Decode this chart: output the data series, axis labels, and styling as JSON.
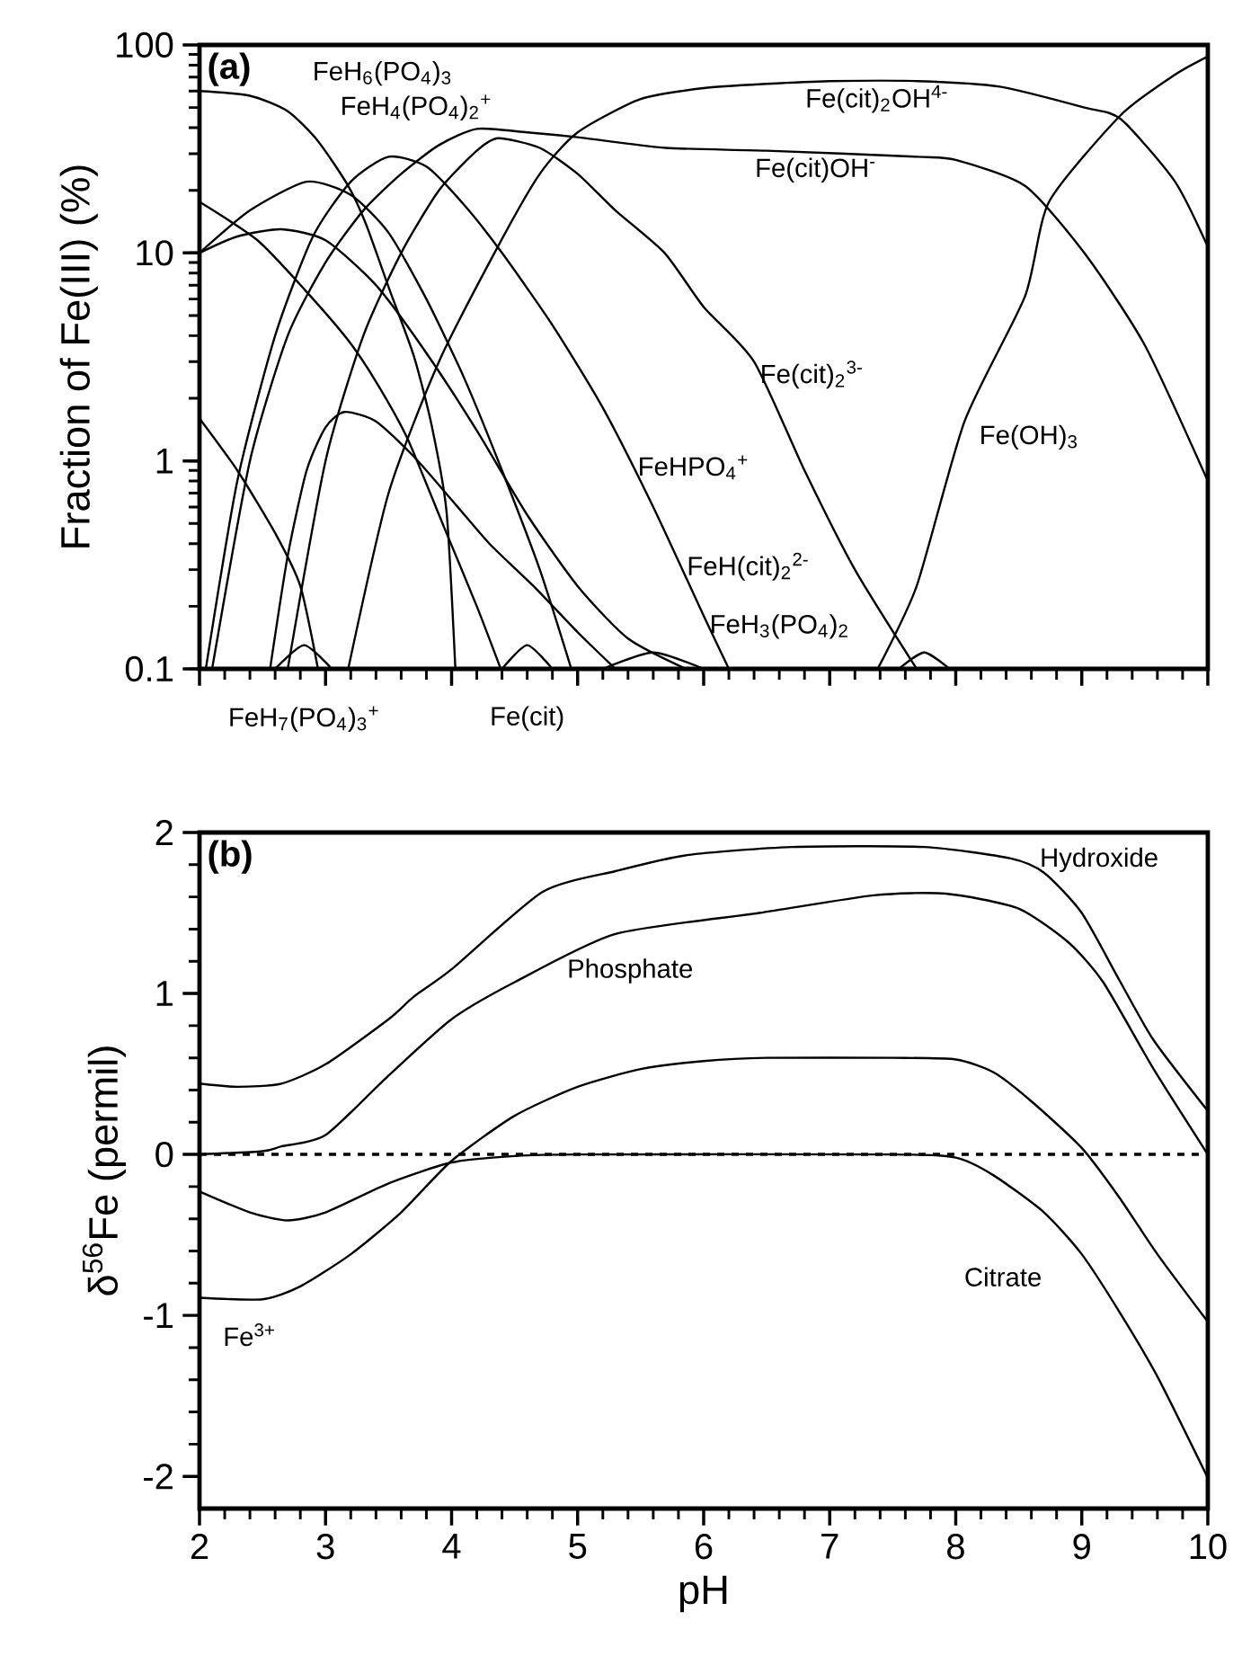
{
  "chart_data": [
    {
      "type": "line",
      "title": "(a)",
      "ylabel": "Fraction of Fe(III) (%)",
      "log": "y",
      "xlim": [
        2,
        10
      ],
      "xticks": [
        2,
        3,
        4,
        5,
        6,
        7,
        8,
        9,
        10
      ],
      "ylim": [
        0.1,
        100
      ],
      "yticks": [
        0.1,
        1,
        10,
        100
      ],
      "tick_labels": "y",
      "series": [
        {
          "color": "#000000",
          "x": [
            2,
            2.4,
            2.7,
            2.94,
            3.18,
            3.32,
            3.51,
            3.7,
            3.84,
            3.96,
            4.03
          ],
          "values": [
            60,
            57,
            48,
            34.5,
            21,
            13.8,
            6.6,
            3.2,
            1.5,
            0.57,
            0.1
          ]
        },
        {
          "color": "#000000",
          "x": [
            2,
            2.46,
            2.84,
            3.18,
            3.41,
            3.65,
            3.94,
            4.2,
            4.39
          ],
          "values": [
            17.6,
            11.5,
            6.6,
            3.8,
            2.35,
            1.28,
            0.48,
            0.2,
            0.1
          ]
        },
        {
          "color": "#000000",
          "x": [
            2,
            2.4,
            2.85,
            3.2,
            3.5,
            3.8,
            4.1,
            4.4,
            4.7,
            4.95
          ],
          "values": [
            10,
            16,
            22,
            19,
            12.5,
            6,
            2.5,
            0.9,
            0.3,
            0.1
          ]
        },
        {
          "color": "#000000",
          "x": [
            2,
            2.3,
            2.65,
            3.0,
            3.4,
            3.8,
            4.2,
            4.6,
            5.0,
            5.4,
            5.86
          ],
          "values": [
            10,
            12,
            13,
            11.5,
            7,
            3.3,
            1.4,
            0.55,
            0.25,
            0.14,
            0.1
          ]
        },
        {
          "color": "#000000",
          "x": [
            2,
            2.3,
            2.6,
            2.8,
            2.94
          ],
          "values": [
            1.6,
            0.9,
            0.45,
            0.25,
            0.1
          ]
        },
        {
          "color": "#000000",
          "x": [
            2.56,
            2.7,
            2.85,
            3.0,
            3.15,
            3.4,
            3.7,
            4.0,
            4.3,
            4.65,
            5.0,
            5.3
          ],
          "values": [
            0.1,
            0.35,
            0.9,
            1.45,
            1.72,
            1.55,
            1.05,
            0.65,
            0.4,
            0.25,
            0.15,
            0.1
          ]
        },
        {
          "color": "#000000",
          "x": [
            2.05,
            2.3,
            2.6,
            2.9,
            3.2,
            3.5,
            3.8,
            4.1,
            4.4,
            4.8,
            5.2,
            5.6,
            6.0,
            6.2
          ],
          "values": [
            0.1,
            0.8,
            4,
            12,
            22,
            29,
            26,
            17,
            10,
            4.5,
            1.8,
            0.6,
            0.18,
            0.1
          ]
        },
        {
          "color": "#000000",
          "x": [
            2.1,
            2.4,
            2.7,
            3.0,
            3.3,
            3.6,
            3.9,
            4.2,
            4.6,
            5.0,
            5.7,
            6.5,
            7.69,
            8.0,
            8.55,
            9.02,
            9.5,
            10
          ],
          "values": [
            0.1,
            1,
            4,
            9,
            16,
            24,
            33,
            39.5,
            38,
            36,
            32,
            31,
            29,
            28,
            21,
            10,
            3.6,
            0.8
          ]
        },
        {
          "color": "#000000",
          "x": [
            2.7,
            3.0,
            3.3,
            3.6,
            3.9,
            4.2,
            4.37,
            4.7,
            5.0,
            5.3,
            5.69,
            6.0,
            6.4,
            6.8,
            7.2,
            7.69
          ],
          "values": [
            0.1,
            1,
            4,
            10,
            20,
            31,
            35.6,
            32,
            24,
            16,
            10,
            5.5,
            3,
            0.9,
            0.3,
            0.1
          ]
        },
        {
          "color": "#000000",
          "x": [
            3.18,
            3.5,
            3.9,
            4.37,
            4.7,
            5.0,
            5.5,
            6.0,
            6.5,
            7.0,
            7.7,
            8.35,
            9.02,
            9.31,
            9.74,
            10
          ],
          "values": [
            0.1,
            0.7,
            3,
            10.8,
            24,
            38,
            55,
            62,
            65,
            67,
            67,
            63,
            50,
            44,
            22,
            10.7
          ]
        },
        {
          "color": "#000000",
          "x": [
            7.38,
            7.69,
            8.07,
            8.55,
            8.74,
            9.31,
            9.74,
            10
          ],
          "values": [
            0.1,
            0.25,
            1.55,
            6.2,
            17.6,
            46,
            72,
            88
          ]
        },
        {
          "color": "#000000",
          "x": [
            2.6,
            2.83,
            3.05
          ],
          "values": [
            0.1,
            0.13,
            0.1
          ]
        },
        {
          "color": "#000000",
          "x": [
            4.4,
            4.6,
            4.8
          ],
          "values": [
            0.1,
            0.13,
            0.1
          ]
        },
        {
          "color": "#000000",
          "x": [
            5.2,
            5.6,
            6.0
          ],
          "values": [
            0.1,
            0.12,
            0.1
          ]
        },
        {
          "color": "#000000",
          "x": [
            7.55,
            7.75,
            7.95
          ],
          "values": [
            0.1,
            0.12,
            0.1
          ]
        }
      ],
      "annotations": [
        "FeH$_{6}$(PO$_{4}$)$_{3}$",
        "FeH$_{4}$(PO$_{4}$)$_{2}$$^{+}$",
        "Fe(cit)$_{2}$OH$^{4-}$",
        "Fe(cit)OH$^{-}$",
        "Fe(cit)$_{2}$$^{3-}$",
        "Fe(OH)$_{3}$",
        "FeHPO$_{4}$$^{+}$",
        "FeH(cit)$_{2}$$^{2-}$",
        "FeH$_{3}$(PO$_{4}$)$_{2}$",
        "FeH$_{7}$(PO$_{4}$)$_{3}$$^{+}$",
        "Fe(cit)"
      ]
    },
    {
      "type": "line",
      "title": "(b)",
      "xlabel": "pH",
      "ylabel": "δ$^{56}$Fe (permil)",
      "xlim": [
        2,
        10
      ],
      "xticks": [
        2,
        3,
        4,
        5,
        6,
        7,
        8,
        9,
        10
      ],
      "ylim": [
        -2.2,
        2
      ],
      "yticks": [
        -2,
        -1,
        0,
        1,
        2
      ],
      "ref_lines": [
        {
          "axis": "y",
          "value": 0,
          "line_style": "dashed"
        }
      ],
      "series": [
        {
          "color": "#000000",
          "x": [
            2,
            2.3,
            2.65,
            3.0,
            3.5,
            3.7,
            4.0,
            4.72,
            5.3,
            5.87,
            6.7,
            7.75,
            8.43,
            8.7,
            9.0,
            9.3,
            9.57,
            10
          ],
          "values": [
            0.44,
            0.42,
            0.44,
            0.56,
            0.84,
            0.98,
            1.15,
            1.63,
            1.76,
            1.86,
            1.91,
            1.91,
            1.84,
            1.75,
            1.5,
            1.08,
            0.71,
            0.27
          ]
        },
        {
          "color": "#000000",
          "x": [
            2,
            2.5,
            2.65,
            3.0,
            3.5,
            4.0,
            4.5,
            5.3,
            6.44,
            7.35,
            7.92,
            8.49,
            8.89,
            9.17,
            9.57,
            10
          ],
          "values": [
            0,
            0.02,
            0.05,
            0.12,
            0.49,
            0.84,
            1.07,
            1.37,
            1.5,
            1.61,
            1.62,
            1.53,
            1.32,
            1.07,
            0.53,
            0
          ]
        },
        {
          "color": "#000000",
          "x": [
            2,
            2.4,
            2.7,
            3.0,
            3.5,
            4.0,
            4.5,
            5.0,
            7.5,
            8.0,
            8.3,
            8.7,
            9.0,
            9.3,
            9.6,
            10
          ],
          "values": [
            -0.23,
            -0.36,
            -0.41,
            -0.36,
            -0.18,
            -0.05,
            -0.01,
            0,
            0,
            -0.02,
            -0.13,
            -0.36,
            -0.62,
            -0.98,
            -1.38,
            -2.01
          ]
        },
        {
          "color": "#000000",
          "x": [
            2,
            2.5,
            2.8,
            3.2,
            3.6,
            4.0,
            4.5,
            5.0,
            5.5,
            6.0,
            6.5,
            7.5,
            8.0,
            8.3,
            8.6,
            9.0,
            9.3,
            9.6,
            10
          ],
          "values": [
            -0.89,
            -0.9,
            -0.82,
            -0.62,
            -0.36,
            -0.04,
            0.24,
            0.42,
            0.53,
            0.58,
            0.6,
            0.6,
            0.59,
            0.51,
            0.33,
            0.04,
            -0.27,
            -0.62,
            -1.04
          ]
        }
      ],
      "annotations": [
        "Hydroxide",
        "Phosphate",
        "Citrate",
        "Fe$^{3+}$"
      ]
    }
  ]
}
